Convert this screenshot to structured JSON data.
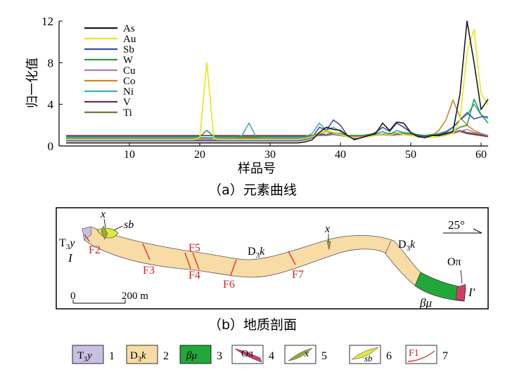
{
  "figure": {
    "caption_a": "（a）元素曲线",
    "caption_b": "（b）地质剖面"
  },
  "chart_data": {
    "type": "line",
    "title": "",
    "xlabel": "样品号",
    "ylabel": "归一化值",
    "xlim": [
      0,
      61
    ],
    "ylim": [
      0,
      12
    ],
    "xticks": [
      10,
      20,
      30,
      40,
      50,
      60
    ],
    "yticks": [
      0,
      4,
      8,
      12
    ],
    "grid": false,
    "legend_placement": "top-left",
    "series": [
      {
        "name": "As",
        "color": "#1a1a1a",
        "x": [
          1,
          2,
          3,
          4,
          5,
          6,
          7,
          8,
          9,
          10,
          11,
          12,
          13,
          14,
          15,
          16,
          17,
          18,
          19,
          20,
          21,
          22,
          23,
          24,
          25,
          26,
          27,
          28,
          29,
          30,
          31,
          32,
          33,
          34,
          35,
          36,
          37,
          38,
          39,
          40,
          41,
          42,
          43,
          44,
          45,
          46,
          47,
          48,
          49,
          50,
          51,
          52,
          53,
          54,
          55,
          56,
          57,
          58,
          59,
          60,
          61
        ],
        "y": [
          0.3,
          0.3,
          0.3,
          0.3,
          0.3,
          0.3,
          0.3,
          0.3,
          0.3,
          0.3,
          0.3,
          0.3,
          0.3,
          0.3,
          0.3,
          0.3,
          0.3,
          0.3,
          0.3,
          0.3,
          0.3,
          0.3,
          0.3,
          0.3,
          0.3,
          0.3,
          0.3,
          0.3,
          0.3,
          0.3,
          0.3,
          0.3,
          0.3,
          0.3,
          0.4,
          0.6,
          1.3,
          1.8,
          1.6,
          1.5,
          1.0,
          0.6,
          0.8,
          1.0,
          1.2,
          2.2,
          1.5,
          2.3,
          2.2,
          1.3,
          0.9,
          0.8,
          1.0,
          1.0,
          1.2,
          1.4,
          5.0,
          12.0,
          8.0,
          3.5,
          4.5
        ]
      },
      {
        "name": "Au",
        "color": "#e6e61a",
        "x": [
          1,
          2,
          3,
          4,
          5,
          6,
          7,
          8,
          9,
          10,
          11,
          12,
          13,
          14,
          15,
          16,
          17,
          18,
          19,
          20,
          21,
          22,
          23,
          24,
          25,
          26,
          27,
          28,
          29,
          30,
          31,
          32,
          33,
          34,
          35,
          36,
          37,
          38,
          39,
          40,
          41,
          42,
          43,
          44,
          45,
          46,
          47,
          48,
          49,
          50,
          51,
          52,
          53,
          54,
          55,
          56,
          57,
          58,
          59,
          60,
          61
        ],
        "y": [
          0.6,
          0.6,
          0.6,
          0.6,
          0.6,
          0.6,
          0.6,
          0.6,
          0.6,
          0.6,
          0.6,
          0.6,
          0.6,
          0.6,
          0.6,
          0.6,
          0.6,
          0.6,
          0.6,
          0.8,
          8.0,
          0.7,
          0.6,
          0.6,
          0.6,
          0.6,
          0.6,
          0.6,
          0.6,
          0.6,
          0.6,
          0.6,
          0.6,
          0.6,
          0.7,
          0.9,
          1.2,
          1.5,
          1.3,
          1.1,
          0.9,
          0.8,
          0.8,
          0.9,
          1.0,
          1.2,
          1.0,
          1.3,
          1.1,
          1.0,
          0.9,
          0.8,
          0.8,
          0.9,
          1.0,
          1.2,
          2.5,
          9.0,
          11.2,
          5.0,
          4.0
        ]
      },
      {
        "name": "Sb",
        "color": "#3d4f9e",
        "x": [
          1,
          2,
          3,
          4,
          5,
          6,
          7,
          8,
          9,
          10,
          11,
          12,
          13,
          14,
          15,
          16,
          17,
          18,
          19,
          20,
          21,
          22,
          23,
          24,
          25,
          26,
          27,
          28,
          29,
          30,
          31,
          32,
          33,
          34,
          35,
          36,
          37,
          38,
          39,
          40,
          41,
          42,
          43,
          44,
          45,
          46,
          47,
          48,
          49,
          50,
          51,
          52,
          53,
          54,
          55,
          56,
          57,
          58,
          59,
          60,
          61
        ],
        "y": [
          0.5,
          0.5,
          0.5,
          0.5,
          0.5,
          0.5,
          0.5,
          0.5,
          0.5,
          0.5,
          0.5,
          0.5,
          0.5,
          0.5,
          0.5,
          0.5,
          0.5,
          0.5,
          0.5,
          0.5,
          0.5,
          0.5,
          0.5,
          0.5,
          0.5,
          0.5,
          0.5,
          0.5,
          0.5,
          0.5,
          0.5,
          0.5,
          0.5,
          0.5,
          0.6,
          0.8,
          1.8,
          1.5,
          2.5,
          2.0,
          1.0,
          0.7,
          0.8,
          1.0,
          1.3,
          1.8,
          1.4,
          2.2,
          1.8,
          1.3,
          1.0,
          0.9,
          1.0,
          1.1,
          1.3,
          1.8,
          2.5,
          3.2,
          2.6,
          2.8,
          2.8
        ]
      },
      {
        "name": "W",
        "color": "#2e9a4e",
        "x": [
          1,
          2,
          3,
          4,
          5,
          6,
          7,
          8,
          9,
          10,
          11,
          12,
          13,
          14,
          15,
          16,
          17,
          18,
          19,
          20,
          21,
          22,
          23,
          24,
          25,
          26,
          27,
          28,
          29,
          30,
          31,
          32,
          33,
          34,
          35,
          36,
          37,
          38,
          39,
          40,
          41,
          42,
          43,
          44,
          45,
          46,
          47,
          48,
          49,
          50,
          51,
          52,
          53,
          54,
          55,
          56,
          57,
          58,
          59,
          60,
          61
        ],
        "y": [
          0.9,
          0.9,
          0.9,
          0.9,
          0.9,
          0.9,
          0.9,
          0.9,
          0.9,
          0.9,
          0.9,
          0.9,
          0.9,
          0.9,
          0.9,
          0.9,
          0.9,
          0.9,
          0.9,
          0.9,
          1.5,
          0.9,
          0.9,
          0.9,
          0.9,
          0.9,
          0.9,
          0.9,
          0.9,
          0.9,
          0.9,
          0.9,
          0.9,
          0.9,
          0.9,
          1.0,
          1.2,
          1.1,
          1.3,
          1.2,
          1.0,
          1.0,
          1.0,
          1.1,
          1.1,
          1.2,
          1.2,
          1.3,
          1.2,
          1.2,
          1.1,
          1.0,
          1.1,
          1.1,
          1.2,
          1.4,
          1.8,
          2.0,
          4.5,
          3.0,
          2.2
        ]
      },
      {
        "name": "Cu",
        "color": "#b07ab8",
        "x": [
          1,
          2,
          3,
          4,
          5,
          6,
          7,
          8,
          9,
          10,
          11,
          12,
          13,
          14,
          15,
          16,
          17,
          18,
          19,
          20,
          21,
          22,
          23,
          24,
          25,
          26,
          27,
          28,
          29,
          30,
          31,
          32,
          33,
          34,
          35,
          36,
          37,
          38,
          39,
          40,
          41,
          42,
          43,
          44,
          45,
          46,
          47,
          48,
          49,
          50,
          51,
          52,
          53,
          54,
          55,
          56,
          57,
          58,
          59,
          60,
          61
        ],
        "y": [
          0.7,
          0.7,
          0.7,
          0.7,
          0.7,
          0.7,
          0.7,
          0.7,
          0.7,
          0.7,
          0.7,
          0.7,
          0.7,
          0.7,
          0.7,
          0.7,
          0.7,
          0.7,
          0.7,
          0.7,
          0.7,
          0.7,
          0.7,
          0.7,
          0.7,
          0.7,
          0.7,
          0.7,
          0.7,
          0.7,
          0.7,
          0.7,
          0.7,
          0.7,
          0.8,
          0.9,
          1.0,
          1.0,
          1.1,
          1.0,
          0.9,
          0.9,
          0.9,
          1.0,
          1.0,
          1.1,
          1.0,
          1.2,
          1.1,
          1.0,
          1.0,
          0.9,
          1.0,
          1.0,
          1.1,
          1.2,
          1.4,
          1.6,
          1.3,
          1.2,
          1.0
        ]
      },
      {
        "name": "Co",
        "color": "#c98a2c",
        "x": [
          1,
          2,
          3,
          4,
          5,
          6,
          7,
          8,
          9,
          10,
          11,
          12,
          13,
          14,
          15,
          16,
          17,
          18,
          19,
          20,
          21,
          22,
          23,
          24,
          25,
          26,
          27,
          28,
          29,
          30,
          31,
          32,
          33,
          34,
          35,
          36,
          37,
          38,
          39,
          40,
          41,
          42,
          43,
          44,
          45,
          46,
          47,
          48,
          49,
          50,
          51,
          52,
          53,
          54,
          55,
          56,
          57,
          58,
          59,
          60,
          61
        ],
        "y": [
          0.6,
          0.6,
          0.6,
          0.6,
          0.6,
          0.6,
          0.6,
          0.6,
          0.6,
          0.6,
          0.6,
          0.6,
          0.6,
          0.6,
          0.6,
          0.6,
          0.6,
          0.6,
          0.6,
          0.6,
          0.6,
          0.6,
          0.6,
          0.6,
          0.6,
          0.6,
          0.6,
          0.6,
          0.6,
          0.6,
          0.6,
          0.6,
          0.6,
          0.6,
          0.7,
          0.8,
          1.2,
          1.4,
          1.2,
          1.0,
          0.9,
          0.8,
          0.9,
          1.0,
          1.1,
          1.2,
          1.0,
          1.3,
          1.2,
          1.1,
          1.0,
          0.9,
          1.0,
          1.5,
          2.5,
          4.4,
          2.8,
          2.0,
          1.5,
          1.2,
          1.0
        ]
      },
      {
        "name": "Ni",
        "color": "#3fb0b0",
        "x": [
          1,
          2,
          3,
          4,
          5,
          6,
          7,
          8,
          9,
          10,
          11,
          12,
          13,
          14,
          15,
          16,
          17,
          18,
          19,
          20,
          21,
          22,
          23,
          24,
          25,
          26,
          27,
          28,
          29,
          30,
          31,
          32,
          33,
          34,
          35,
          36,
          37,
          38,
          39,
          40,
          41,
          42,
          43,
          44,
          45,
          46,
          47,
          48,
          49,
          50,
          51,
          52,
          53,
          54,
          55,
          56,
          57,
          58,
          59,
          60,
          61
        ],
        "y": [
          0.8,
          0.8,
          0.8,
          0.8,
          0.8,
          0.8,
          0.8,
          0.8,
          0.8,
          0.8,
          0.8,
          0.8,
          0.8,
          0.8,
          0.8,
          0.8,
          0.8,
          0.8,
          0.8,
          0.8,
          0.8,
          0.8,
          0.8,
          0.8,
          0.8,
          1.0,
          2.2,
          0.9,
          0.8,
          0.8,
          0.8,
          0.8,
          0.8,
          0.8,
          0.9,
          1.2,
          2.2,
          1.5,
          1.8,
          1.4,
          1.0,
          0.9,
          1.0,
          1.1,
          1.2,
          1.4,
          1.1,
          1.5,
          1.3,
          1.2,
          1.0,
          1.0,
          1.1,
          1.2,
          1.4,
          1.8,
          2.5,
          3.0,
          4.0,
          3.0,
          2.6
        ]
      },
      {
        "name": "V",
        "color": "#7a2e4a",
        "x": [
          1,
          2,
          3,
          4,
          5,
          6,
          7,
          8,
          9,
          10,
          11,
          12,
          13,
          14,
          15,
          16,
          17,
          18,
          19,
          20,
          21,
          22,
          23,
          24,
          25,
          26,
          27,
          28,
          29,
          30,
          31,
          32,
          33,
          34,
          35,
          36,
          37,
          38,
          39,
          40,
          41,
          42,
          43,
          44,
          45,
          46,
          47,
          48,
          49,
          50,
          51,
          52,
          53,
          54,
          55,
          56,
          57,
          58,
          59,
          60,
          61
        ],
        "y": [
          1.0,
          1.0,
          1.0,
          1.0,
          1.0,
          1.0,
          1.0,
          1.0,
          1.0,
          1.0,
          1.0,
          1.0,
          1.0,
          1.0,
          1.0,
          1.0,
          1.0,
          1.0,
          1.0,
          1.0,
          1.0,
          1.0,
          1.0,
          1.0,
          1.0,
          1.0,
          1.0,
          1.0,
          1.0,
          1.0,
          1.0,
          1.0,
          1.0,
          1.0,
          1.0,
          1.0,
          1.1,
          1.0,
          1.1,
          1.0,
          1.0,
          1.0,
          1.0,
          1.0,
          1.1,
          1.1,
          1.0,
          1.1,
          1.1,
          1.0,
          1.0,
          1.0,
          1.0,
          1.0,
          1.1,
          1.2,
          1.4,
          1.2,
          1.1,
          1.0,
          0.9
        ]
      },
      {
        "name": "Ti",
        "color": "#6b7a3a",
        "x": [
          1,
          2,
          3,
          4,
          5,
          6,
          7,
          8,
          9,
          10,
          11,
          12,
          13,
          14,
          15,
          16,
          17,
          18,
          19,
          20,
          21,
          22,
          23,
          24,
          25,
          26,
          27,
          28,
          29,
          30,
          31,
          32,
          33,
          34,
          35,
          36,
          37,
          38,
          39,
          40,
          41,
          42,
          43,
          44,
          45,
          46,
          47,
          48,
          49,
          50,
          51,
          52,
          53,
          54,
          55,
          56,
          57,
          58,
          59,
          60,
          61
        ],
        "y": [
          0.8,
          0.8,
          0.8,
          0.8,
          0.8,
          0.8,
          0.8,
          0.8,
          0.8,
          0.8,
          0.8,
          0.8,
          0.8,
          0.8,
          0.8,
          0.8,
          0.8,
          0.8,
          0.8,
          0.8,
          0.8,
          0.8,
          0.8,
          0.8,
          0.8,
          0.8,
          0.8,
          0.8,
          0.8,
          0.8,
          0.8,
          0.8,
          0.8,
          0.8,
          0.9,
          1.0,
          1.1,
          1.1,
          1.2,
          1.1,
          1.0,
          1.0,
          1.0,
          1.0,
          1.1,
          1.2,
          1.1,
          1.2,
          1.2,
          1.1,
          1.0,
          1.0,
          1.0,
          1.1,
          1.2,
          1.3,
          1.5,
          1.3,
          1.2,
          1.1,
          1.0
        ]
      }
    ]
  },
  "section": {
    "labels": {
      "t3y_prefix": "T",
      "t3y_sub": "3",
      "t3y_suffix": "y",
      "I": "I",
      "I_prime": "I′",
      "x_top1": "x",
      "sb": "sb",
      "x_top2": "x",
      "d3k_1_prefix": "D",
      "d3k_1_sub": "3",
      "d3k_1_suffix": "k",
      "d3k_2_prefix": "D",
      "d3k_2_sub": "3",
      "d3k_2_suffix": "k",
      "beta_mu": "βμ",
      "o_pi": "Oπ",
      "dip": "25°",
      "scale_zero": "0",
      "scale_len": "200 m"
    },
    "faults": [
      "F2",
      "F3",
      "F5",
      "F4",
      "F6",
      "F7"
    ],
    "colors": {
      "d3k": "#f7dca6",
      "t3y": "#c9bfe0",
      "beta_mu": "#22a73a",
      "o_pi": "#d43a6a",
      "x_lens": "#9aa83a",
      "sb_lens": "#e4e83a",
      "fault": "#e03030",
      "fault_text": "#d42020"
    }
  },
  "legend": [
    {
      "idx": "1",
      "sym_prefix": "T",
      "sym_sub": "3",
      "sym_suffix": "y"
    },
    {
      "idx": "2",
      "sym_prefix": "D",
      "sym_sub": "3",
      "sym_suffix": "k"
    },
    {
      "idx": "3",
      "sym": "βμ"
    },
    {
      "idx": "4",
      "sym": "Oπ"
    },
    {
      "idx": "5",
      "sym": "x"
    },
    {
      "idx": "6",
      "sym": "sb"
    },
    {
      "idx": "7",
      "sym": "F1"
    }
  ]
}
